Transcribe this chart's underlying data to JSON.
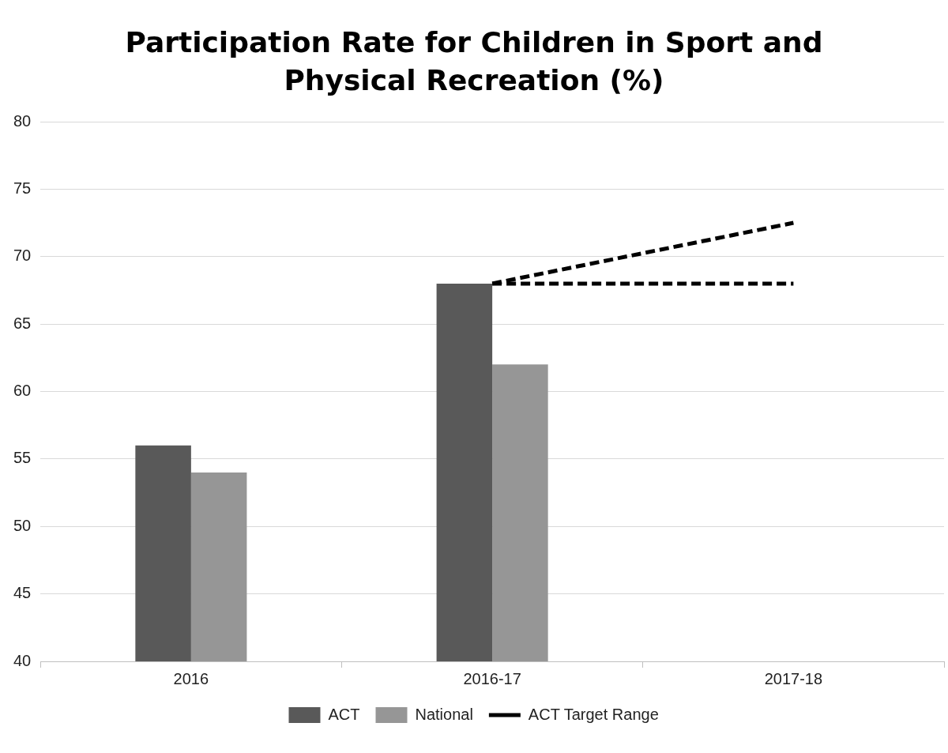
{
  "chart_data": {
    "type": "bar",
    "title": "Participation Rate for Children in Sport and Physical Recreation (%)",
    "categories": [
      "2016",
      "2016-17",
      "2017-18"
    ],
    "series": [
      {
        "name": "ACT",
        "color": "#595959",
        "values": [
          56,
          68,
          null
        ]
      },
      {
        "name": "National",
        "color": "#969696",
        "values": [
          54,
          62,
          null
        ]
      },
      {
        "name": "ACT Target Range",
        "type": "line",
        "color": "#000000",
        "line_style": "dashed",
        "marker": "none",
        "values": [
          null,
          68,
          72.5
        ]
      },
      {
        "type": "line",
        "color": "#000000",
        "line_style": "dashed",
        "marker": "none",
        "values": [
          null,
          68,
          68
        ]
      }
    ],
    "ylim": [
      40,
      80
    ],
    "yticks": [
      40,
      45,
      50,
      55,
      60,
      65,
      70,
      75,
      80
    ],
    "grid": "y",
    "legend": "bottom"
  }
}
